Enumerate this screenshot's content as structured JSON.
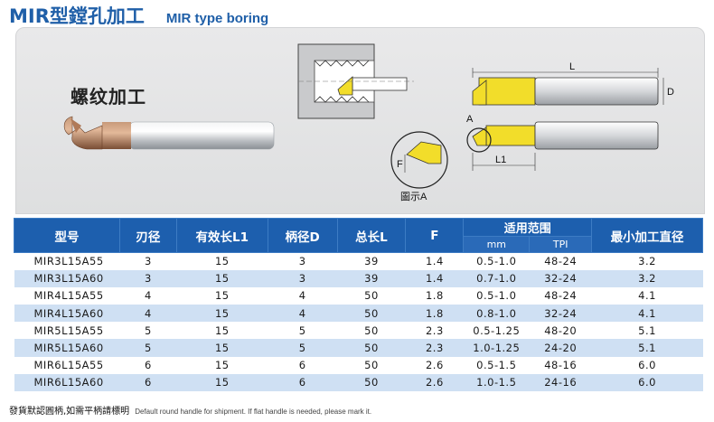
{
  "header": {
    "title_cn": "MIR型鏜孔加工",
    "title_en": "MIR type boring"
  },
  "hero": {
    "thread_label": "螺纹加工",
    "dim_L": "L",
    "dim_D": "D",
    "dim_L1": "L1",
    "dim_A": "A",
    "dim_F": "F",
    "figure_caption": "圖示A"
  },
  "table": {
    "headers": {
      "model": "型号",
      "edge": "刃径",
      "length_l1": "有效长L1",
      "shank_d": "柄径D",
      "total_l": "总长L",
      "f": "F",
      "range": "适用范围",
      "mm": "mm",
      "tpi": "TPI",
      "min_dia": "最小加工直径"
    },
    "rows": [
      {
        "model": "MIR3L15A55",
        "edge": "3",
        "l1": "15",
        "d": "3",
        "l": "39",
        "f": "1.4",
        "mm": "0.5-1.0",
        "tpi": "48-24",
        "min": "3.2"
      },
      {
        "model": "MIR3L15A60",
        "edge": "3",
        "l1": "15",
        "d": "3",
        "l": "39",
        "f": "1.4",
        "mm": "0.7-1.0",
        "tpi": "32-24",
        "min": "3.2"
      },
      {
        "model": "MIR4L15A55",
        "edge": "4",
        "l1": "15",
        "d": "4",
        "l": "50",
        "f": "1.8",
        "mm": "0.5-1.0",
        "tpi": "48-24",
        "min": "4.1"
      },
      {
        "model": "MIR4L15A60",
        "edge": "4",
        "l1": "15",
        "d": "4",
        "l": "50",
        "f": "1.8",
        "mm": "0.8-1.0",
        "tpi": "32-24",
        "min": "4.1"
      },
      {
        "model": "MIR5L15A55",
        "edge": "5",
        "l1": "15",
        "d": "5",
        "l": "50",
        "f": "2.3",
        "mm": "0.5-1.25",
        "tpi": "48-20",
        "min": "5.1"
      },
      {
        "model": "MIR5L15A60",
        "edge": "5",
        "l1": "15",
        "d": "5",
        "l": "50",
        "f": "2.3",
        "mm": "1.0-1.25",
        "tpi": "24-20",
        "min": "5.1"
      },
      {
        "model": "MIR6L15A55",
        "edge": "6",
        "l1": "15",
        "d": "6",
        "l": "50",
        "f": "2.6",
        "mm": "0.5-1.5",
        "tpi": "48-16",
        "min": "6.0"
      },
      {
        "model": "MIR6L15A60",
        "edge": "6",
        "l1": "15",
        "d": "6",
        "l": "50",
        "f": "2.6",
        "mm": "1.0-1.5",
        "tpi": "24-16",
        "min": "6.0"
      }
    ]
  },
  "footer": {
    "note_cn": "發貨默認圓柄,如需平柄請標明",
    "note_en": "Default round handle for shipment. If flat handle is needed, please mark it."
  }
}
